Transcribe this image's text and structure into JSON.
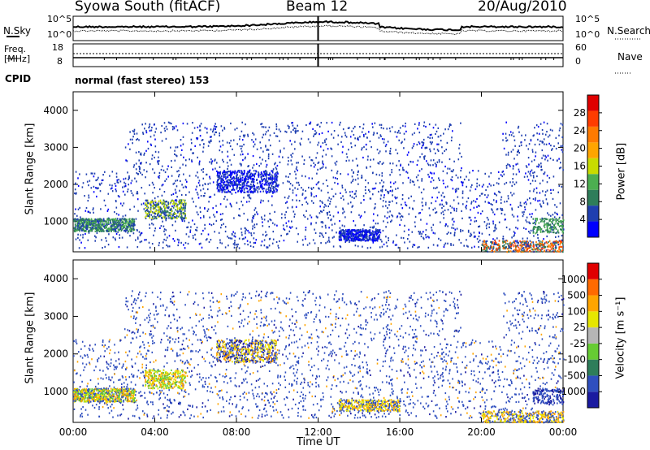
{
  "header": {
    "station": "Syowa South (fitACF)",
    "beam": "Beam 12",
    "date": "20/Aug/2010"
  },
  "summary_panels": {
    "nsky_label": "N.Sky",
    "nsearch_label": "N.Search",
    "noise_ticks": [
      "10^5",
      "10^0"
    ],
    "freq_label_1": "Freq.",
    "freq_label_2": "[MHz]",
    "freq_ticks": [
      "18",
      "8"
    ],
    "nave_label": "Nave",
    "nave_ticks": [
      "60",
      "0"
    ],
    "cpid_label": "CPID",
    "cpid_text": "normal (fast stereo) 153"
  },
  "colors": {
    "power_scale": [
      "#0000ff",
      "#1f3fb0",
      "#2e7d5a",
      "#4caf50",
      "#c8dc00",
      "#ffa500",
      "#ff7a00",
      "#ff3c00",
      "#e00000"
    ],
    "velocity_scale": [
      "#1a1aa0",
      "#2f4fbf",
      "#2e7d5a",
      "#66cc33",
      "#b5b5b5",
      "#e6e600",
      "#ffa500",
      "#ff6a00",
      "#e00000"
    ]
  },
  "chart_data": [
    {
      "type": "heatmap",
      "panel": "power",
      "ylabel": "Slant Range [km]",
      "yticks": [
        "4000",
        "3000",
        "2000",
        "1000"
      ],
      "ylim": [
        180,
        4500
      ],
      "colorbar_label": "Power [dB]",
      "colorbar_ticks": [
        "28",
        "24",
        "20",
        "16",
        "12",
        "8",
        "4"
      ]
    },
    {
      "type": "heatmap",
      "panel": "velocity",
      "ylabel": "Slant Range [km]",
      "yticks": [
        "4000",
        "3000",
        "2000",
        "1000"
      ],
      "ylim": [
        180,
        4500
      ],
      "xlabel": "Time UT",
      "xticks": [
        "00:00",
        "04:00",
        "08:00",
        "12:00",
        "16:00",
        "20:00",
        "00:00"
      ],
      "colorbar_label": "Velocity [m s⁻¹]",
      "colorbar_ticks": [
        "1000",
        "500",
        "100",
        "25",
        "-25",
        "-100",
        "-500",
        "-1000"
      ]
    }
  ]
}
